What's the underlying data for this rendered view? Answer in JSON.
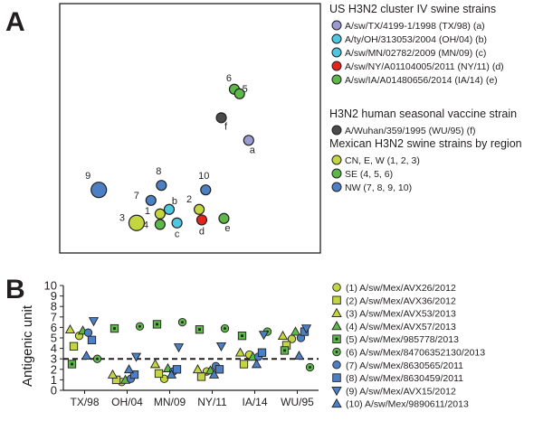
{
  "panel_a": {
    "letter": "A",
    "groups": [
      {
        "title": "US H3N2 cluster IV swine strains",
        "items": [
          {
            "color": "#9a9bd1",
            "text": "A/sw/TX/4199-1/1998 (TX/98) (a)"
          },
          {
            "color": "#4dc8e0",
            "text": "A/ty/OH/313053/2004 (OH/04) (b)"
          },
          {
            "color": "#4dc8e0",
            "text": "A/sw/MN/02782/2009 (MN/09) (c)"
          },
          {
            "color": "#e5221e",
            "text": "A/sw/NY/A01104005/2011 (NY/11) (d)"
          },
          {
            "color": "#5cb849",
            "text": "A/sw/IA/A01480656/2014 (IA/14) (e)"
          }
        ]
      },
      {
        "title": "H3N2 human seasonal vaccine strain",
        "items": [
          {
            "color": "#4a4a4a",
            "text": "A/Wuhan/359/1995 (WU/95) (f)"
          }
        ]
      },
      {
        "title": "Mexican H3N2 swine strains by region",
        "items": [
          {
            "color": "#c4d63f",
            "text": "CN, E, W (1, 2, 3)"
          },
          {
            "color": "#5cb849",
            "text": "SE (4, 5, 6)"
          },
          {
            "color": "#4d7fc4",
            "text": "NW (7, 8, 9, 10)"
          }
        ]
      }
    ]
  },
  "chart_data": [
    {
      "type": "scatter",
      "panel": "A",
      "description": "Antigenic map (2D), positions in antigenic-unit space",
      "xlim": [
        0,
        10
      ],
      "ylim": [
        0,
        8.3
      ],
      "points": [
        {
          "label": "a",
          "x": 7.25,
          "y": 3.75,
          "color": "#9a9bd1",
          "size": "small"
        },
        {
          "label": "f",
          "x": 6.2,
          "y": 4.5,
          "color": "#4a4a4a",
          "size": "small"
        },
        {
          "label": "6",
          "x": 6.7,
          "y": 5.45,
          "color": "#5cb849",
          "size": "small"
        },
        {
          "label": "5",
          "x": 6.9,
          "y": 5.3,
          "color": "#5cb849",
          "size": "small"
        },
        {
          "label": "e",
          "x": 6.3,
          "y": 1.15,
          "color": "#5cb849",
          "size": "small"
        },
        {
          "label": "9",
          "x": 1.5,
          "y": 2.1,
          "color": "#4d7fc4",
          "size": "large"
        },
        {
          "label": "8",
          "x": 3.9,
          "y": 2.25,
          "color": "#4d7fc4",
          "size": "small"
        },
        {
          "label": "10",
          "x": 5.6,
          "y": 2.1,
          "color": "#4d7fc4",
          "size": "small"
        },
        {
          "label": "7",
          "x": 3.5,
          "y": 1.75,
          "color": "#4d7fc4",
          "size": "small"
        },
        {
          "label": "b",
          "x": 4.2,
          "y": 1.45,
          "color": "#4dc8e0",
          "size": "small"
        },
        {
          "label": "1",
          "x": 3.85,
          "y": 1.3,
          "color": "#c4d63f",
          "size": "small"
        },
        {
          "label": "2",
          "x": 5.35,
          "y": 1.45,
          "color": "#c4d63f",
          "size": "small"
        },
        {
          "label": "3",
          "x": 2.95,
          "y": 1.0,
          "color": "#c4d63f",
          "size": "large"
        },
        {
          "label": "4",
          "x": 3.85,
          "y": 0.95,
          "color": "#5cb849",
          "size": "small"
        },
        {
          "label": "c",
          "x": 4.5,
          "y": 1.0,
          "color": "#4dc8e0",
          "size": "small"
        },
        {
          "label": "d",
          "x": 5.45,
          "y": 1.1,
          "color": "#e5221e",
          "size": "small"
        }
      ]
    },
    {
      "type": "scatter",
      "panel": "B",
      "ylabel": "Antigenic unit",
      "ylim": [
        0,
        10
      ],
      "yticks": [
        0,
        1,
        2,
        3,
        4,
        5,
        6,
        7,
        8,
        9,
        10
      ],
      "categories": [
        "TX/98",
        "OH/04",
        "MN/09",
        "NY/11",
        "IA/14",
        "WU/95"
      ],
      "threshold": 3,
      "series": [
        {
          "id": 1,
          "name": "(1) A/sw/Mex/AVX26/2012",
          "marker": "circle",
          "fill": "#c4d63f",
          "values": [
            5.2,
            0.8,
            1.1,
            1.8,
            3.4,
            4.9
          ]
        },
        {
          "id": 2,
          "name": "(2) A/sw/Mex/AVX36/2012",
          "marker": "square",
          "fill": "#c4d63f",
          "values": [
            4.2,
            1.0,
            1.6,
            1.3,
            2.5,
            4.3
          ]
        },
        {
          "id": 3,
          "name": "(3) A/sw/Mex/AVX53/2013",
          "marker": "triangle-up",
          "fill": "#c4d63f",
          "values": [
            5.8,
            1.5,
            2.5,
            2.0,
            3.6,
            5.2
          ]
        },
        {
          "id": 4,
          "name": "(4) A/sw/Mex/AVX57/2013",
          "marker": "triangle-up",
          "fill": "#5cb849",
          "values": [
            5.7,
            1.0,
            2.1,
            1.9,
            3.2,
            5.6
          ]
        },
        {
          "id": 5,
          "name": "(5) A/sw/Mex/985778/2013",
          "marker": "square-dot",
          "fill": "#5cb849",
          "values": [
            2.5,
            5.9,
            6.3,
            5.8,
            5.2,
            3.8
          ]
        },
        {
          "id": 6,
          "name": "(6) A/sw/Mex/84706352130/2013",
          "marker": "circle-dot",
          "fill": "#5cb849",
          "values": [
            3.0,
            6.1,
            6.5,
            5.9,
            5.6,
            2.2
          ]
        },
        {
          "id": 7,
          "name": "(7) A/sw/Mex/8630565/2011",
          "marker": "circle",
          "fill": "#4d7fc4",
          "values": [
            5.5,
            1.1,
            1.8,
            2.3,
            3.2,
            5.0
          ]
        },
        {
          "id": 8,
          "name": "(8) A/sw/Mex/8630459/2011",
          "marker": "square",
          "fill": "#4d7fc4",
          "values": [
            4.8,
            1.5,
            2.0,
            2.0,
            3.6,
            5.6
          ]
        },
        {
          "id": 9,
          "name": "(9) A/sw/Mex/AVX15/2012",
          "marker": "triangle-down",
          "fill": "#4d7fc4",
          "values": [
            6.6,
            3.2,
            4.1,
            4.2,
            5.3,
            5.9
          ]
        },
        {
          "id": 10,
          "name": "(10) A/sw/Mex/9890611/2013",
          "marker": "triangle-up",
          "fill": "#4d7fc4",
          "values": [
            3.3,
            2.0,
            1.5,
            1.5,
            2.5,
            3.3
          ]
        }
      ]
    }
  ],
  "panel_b": {
    "letter": "B"
  }
}
